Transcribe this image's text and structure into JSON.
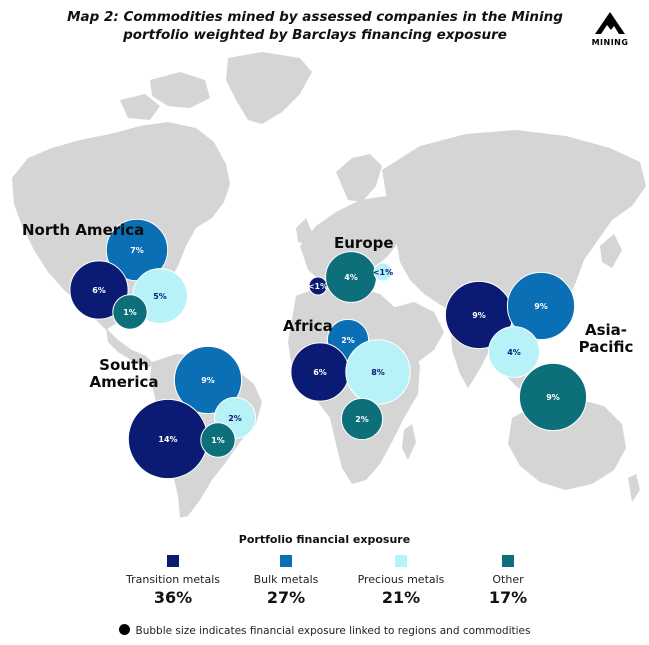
{
  "title": "Map 2: Commodities mined by assessed companies in the Mining portfolio weighted by Barclays financing exposure",
  "logo": {
    "label": "MINING",
    "icon": "mountain-icon"
  },
  "colors": {
    "transition": "#0b1a72",
    "bulk": "#0a6fb5",
    "precious": "#b6f2f8",
    "other": "#0d6f79",
    "land": "#d5d5d5"
  },
  "regions": {
    "north_america": "North America",
    "south_america": "South America",
    "europe": "Europe",
    "africa": "Africa",
    "asia_pacific": "Asia-Pacific"
  },
  "chart_data": {
    "type": "bubble-map",
    "bubbles": [
      {
        "region": "North America",
        "category": "bulk",
        "value": 7,
        "label": "7%"
      },
      {
        "region": "North America",
        "category": "transition",
        "value": 6,
        "label": "6%"
      },
      {
        "region": "North America",
        "category": "precious",
        "value": 5,
        "label": "5%"
      },
      {
        "region": "North America",
        "category": "other",
        "value": 1,
        "label": "1%"
      },
      {
        "region": "South America",
        "category": "bulk",
        "value": 9,
        "label": "9%"
      },
      {
        "region": "South America",
        "category": "transition",
        "value": 14,
        "label": "14%"
      },
      {
        "region": "South America",
        "category": "precious",
        "value": 2,
        "label": "2%"
      },
      {
        "region": "South America",
        "category": "other",
        "value": 1,
        "label": "1%"
      },
      {
        "region": "Europe",
        "category": "transition",
        "value": 0.5,
        "label": "<1%"
      },
      {
        "region": "Europe",
        "category": "other",
        "value": 4,
        "label": "4%"
      },
      {
        "region": "Europe",
        "category": "precious",
        "value": 0.5,
        "label": "<1%"
      },
      {
        "region": "Africa",
        "category": "bulk",
        "value": 2,
        "label": "2%"
      },
      {
        "region": "Africa",
        "category": "transition",
        "value": 6,
        "label": "6%"
      },
      {
        "region": "Africa",
        "category": "precious",
        "value": 8,
        "label": "8%"
      },
      {
        "region": "Africa",
        "category": "other",
        "value": 2,
        "label": "2%"
      },
      {
        "region": "Asia-Pacific",
        "category": "transition",
        "value": 9,
        "label": "9%"
      },
      {
        "region": "Asia-Pacific",
        "category": "bulk",
        "value": 9,
        "label": "9%"
      },
      {
        "region": "Asia-Pacific",
        "category": "precious",
        "value": 4,
        "label": "4%"
      },
      {
        "region": "Asia-Pacific",
        "category": "other",
        "value": 9,
        "label": "9%"
      }
    ]
  },
  "legend": {
    "title": "Portfolio financial exposure",
    "items": [
      {
        "key": "transition",
        "label": "Transition metals",
        "value": "36%"
      },
      {
        "key": "bulk",
        "label": "Bulk metals",
        "value": "27%"
      },
      {
        "key": "precious",
        "label": "Precious metals",
        "value": "21%"
      },
      {
        "key": "other",
        "label": "Other",
        "value": "17%"
      }
    ]
  },
  "footnote": "Bubble size indicates financial exposure linked to regions and commodities"
}
